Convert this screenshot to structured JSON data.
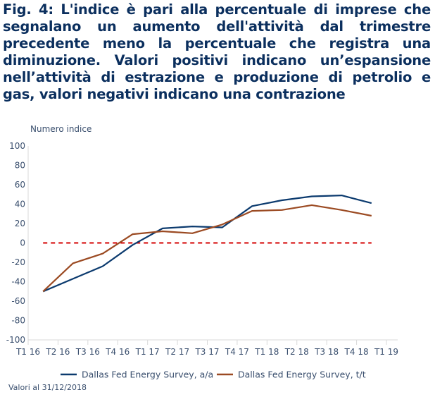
{
  "header": {
    "title": "Fig. 4: L'indice è pari alla percentuale di imprese che segnalano un aumento dell'attività dal trimestre precedente meno la percentuale che registra una diminuzione. Valori positivi indicano un’espansione nell’attività di estrazione e produzione di petrolio e gas, valori negativi indicano una contrazione"
  },
  "footer": {
    "source": "Valori al 31/12/2018"
  },
  "chart_data": {
    "type": "line",
    "title": "Fig. 4: L'indice è pari alla percentuale di imprese che segnalano un aumento dell'attività dal trimestre precedente meno la percentuale che registra una diminuzione. Valori positivi indicano un’espansione nell’attività di estrazione e produzione di petrolio e gas, valori negativi indicano una contrazione",
    "ylabel": "Numero indice",
    "xlabel": "",
    "ylim": [
      -100,
      100
    ],
    "yticks": [
      100,
      80,
      60,
      40,
      20,
      0,
      -20,
      -40,
      -60,
      -80,
      -100
    ],
    "ytick_labels": [
      "100",
      "80",
      "60",
      "40",
      "20",
      "0",
      "-20",
      "-40",
      "-60",
      "-80",
      "-100"
    ],
    "xtick_labels": [
      "T1 16",
      "T2 16",
      "T3 16",
      "T4 16",
      "T1 17",
      "T2 17",
      "T3 17",
      "T4 17",
      "T1 18",
      "T2 18",
      "T3 18",
      "T4 18",
      "T1 19"
    ],
    "categories": [
      "2016 Q1",
      "2016 Q2",
      "2016 Q3",
      "2016 Q4",
      "2017 Q1",
      "2017 Q2",
      "2017 Q3",
      "2017 Q4",
      "2018 Q1",
      "2018 Q2",
      "2018 Q3",
      "2018 Q4"
    ],
    "grid": false,
    "legend_position": "bottom",
    "reference_line": {
      "y": 0,
      "style": "dashed",
      "color": "#d40000"
    },
    "series": [
      {
        "name": "Dallas Fed Energy Survey, a/a",
        "color": "#0b3a6e",
        "values": [
          -50,
          -37,
          -24,
          -2,
          15,
          17,
          16,
          38,
          44,
          48,
          49,
          41
        ]
      },
      {
        "name": "Dallas Fed Energy Survey, t/t",
        "color": "#9b4a22",
        "values": [
          -50,
          -21,
          -11,
          9,
          12,
          10,
          19,
          33,
          34,
          39,
          34,
          28
        ]
      }
    ]
  }
}
